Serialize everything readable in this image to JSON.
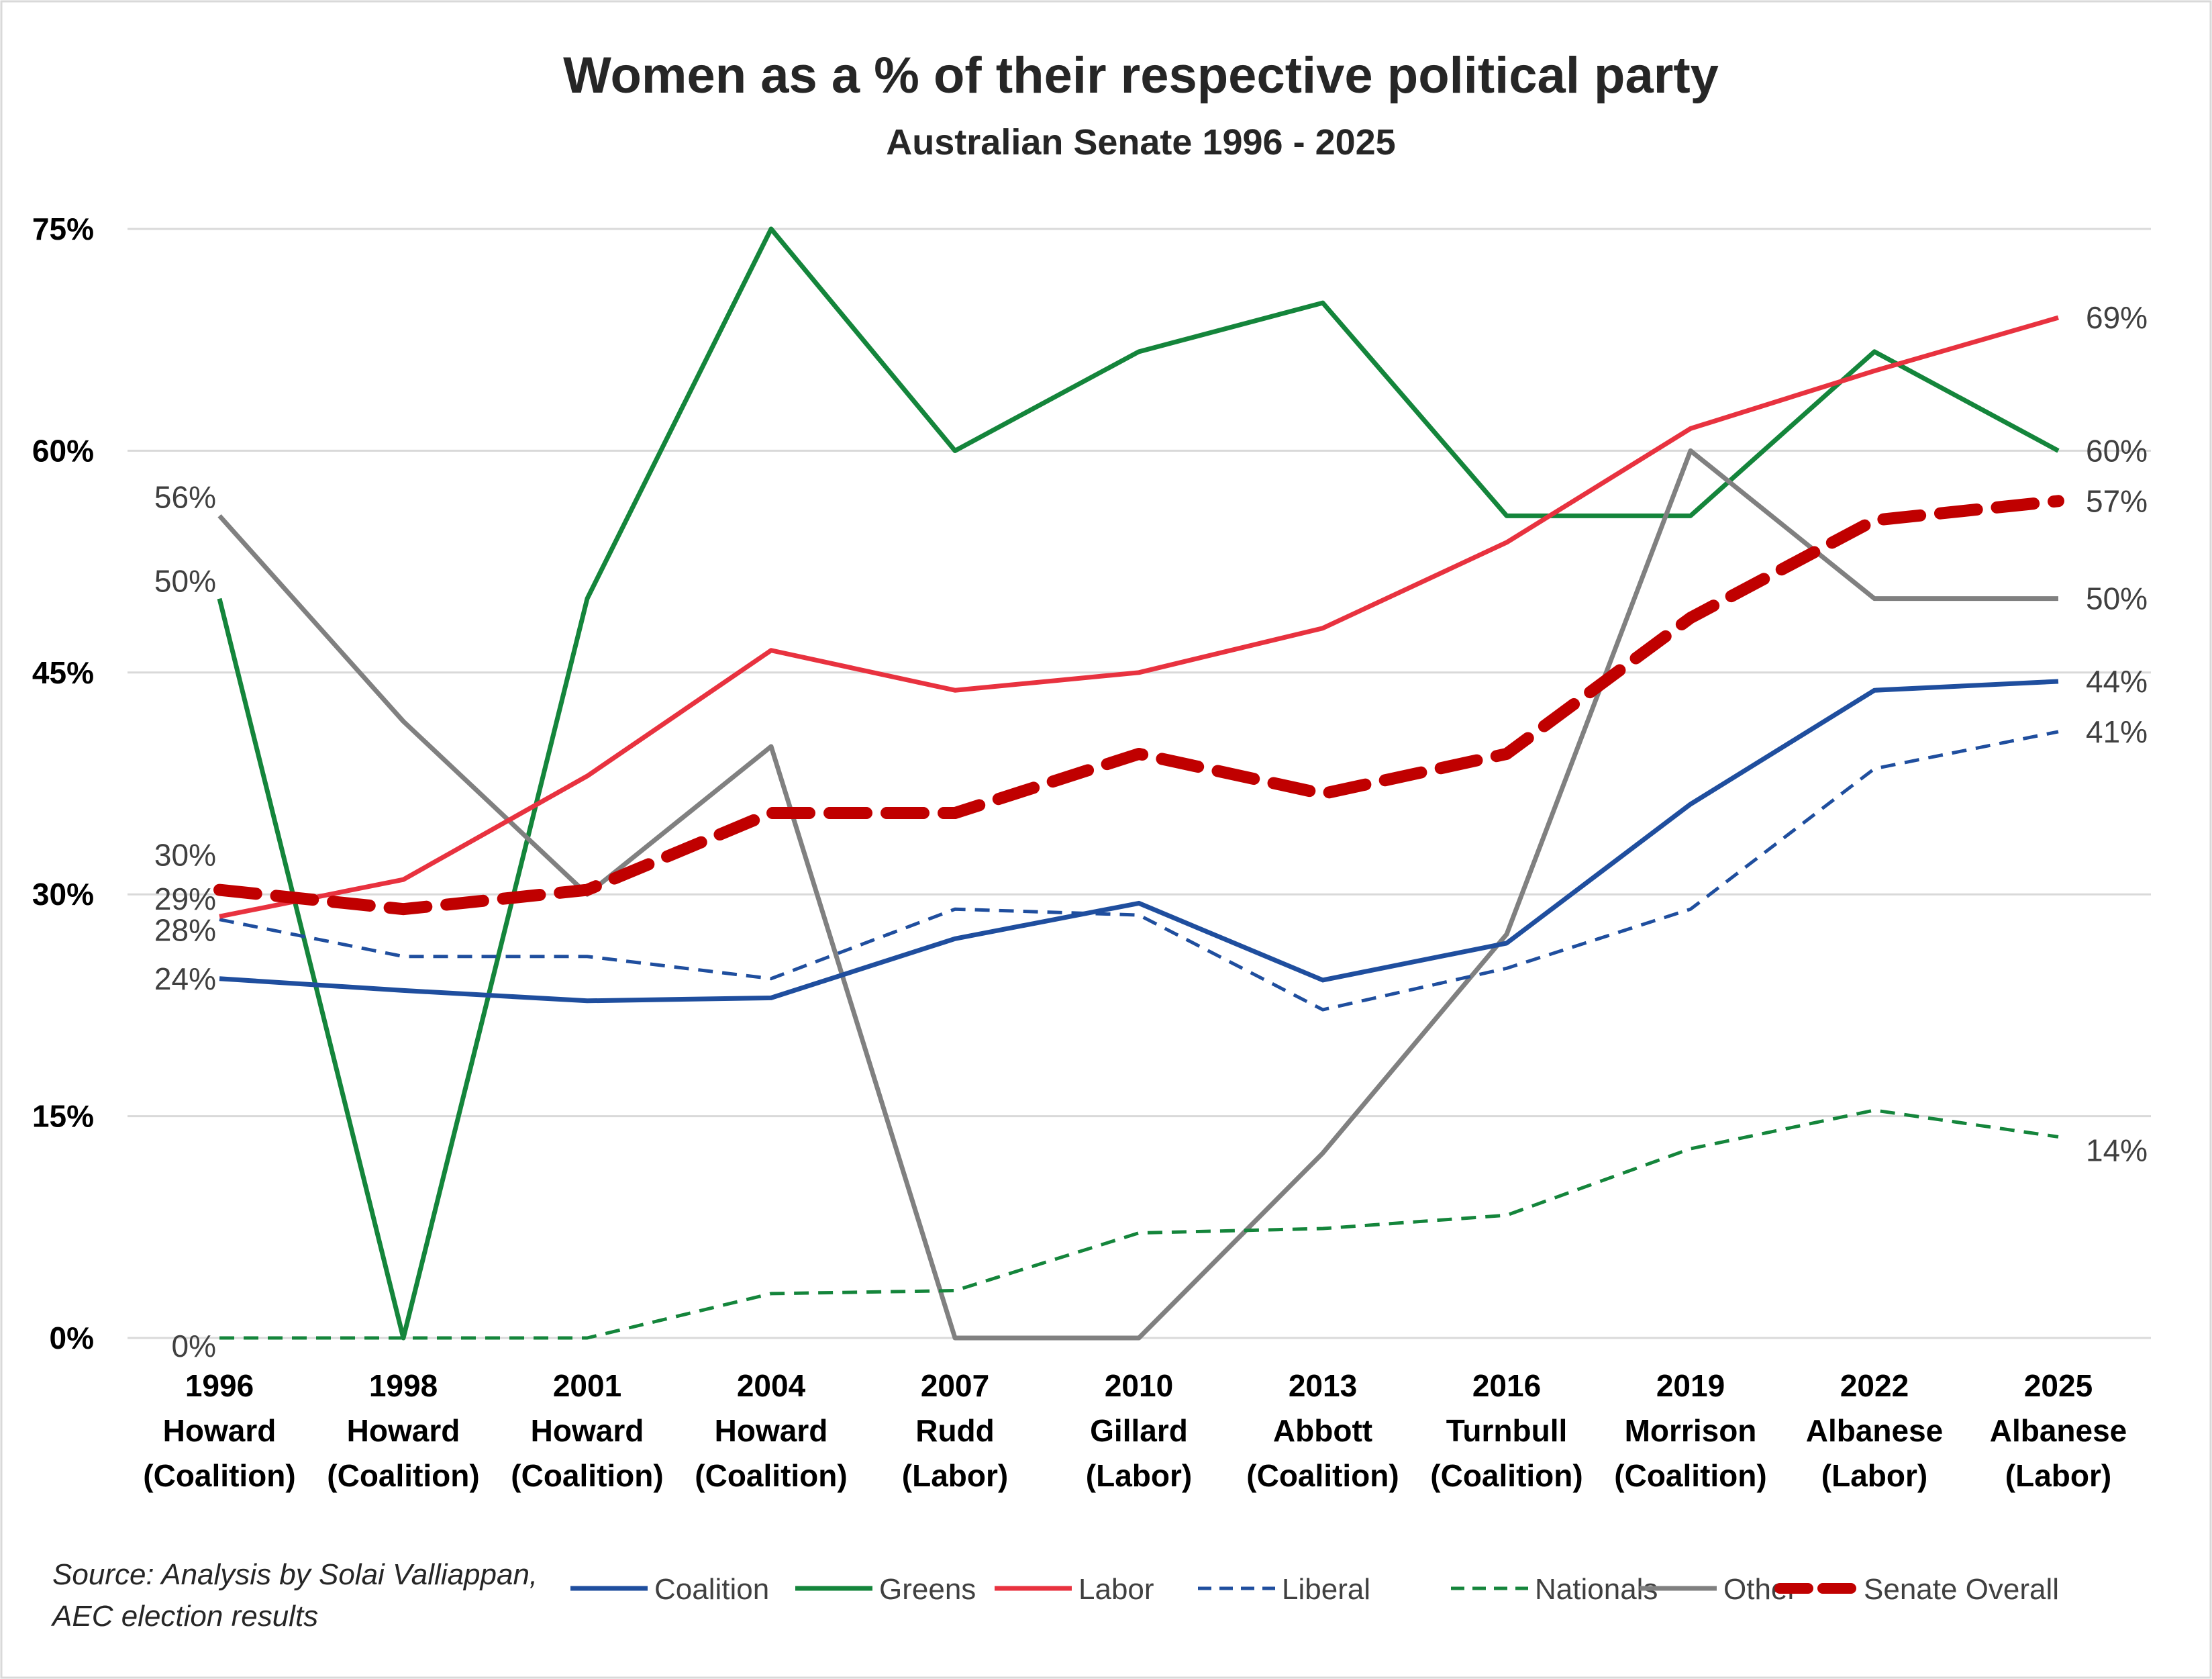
{
  "chart_data": {
    "type": "line",
    "title": "Women as a % of their respective political party",
    "subtitle": "Australian Senate 1996 - 2025",
    "ylim": [
      0,
      0.75
    ],
    "y_ticks": [
      {
        "value": 0,
        "label": "0%"
      },
      {
        "value": 0.15,
        "label": "15%"
      },
      {
        "value": 0.3,
        "label": "30%"
      },
      {
        "value": 0.45,
        "label": "45%"
      },
      {
        "value": 0.6,
        "label": "60%"
      },
      {
        "value": 0.75,
        "label": "75%"
      }
    ],
    "grid": true,
    "legend_position": "bottom",
    "categories": [
      {
        "year": "1996",
        "pm": "Howard",
        "party": "(Coalition)"
      },
      {
        "year": "1998",
        "pm": "Howard",
        "party": "(Coalition)"
      },
      {
        "year": "2001",
        "pm": "Howard",
        "party": "(Coalition)"
      },
      {
        "year": "2004",
        "pm": "Howard",
        "party": "(Coalition)"
      },
      {
        "year": "2007",
        "pm": "Rudd",
        "party": "(Labor)"
      },
      {
        "year": "2010",
        "pm": "Gillard",
        "party": "(Labor)"
      },
      {
        "year": "2013",
        "pm": "Abbott",
        "party": "(Coalition)"
      },
      {
        "year": "2016",
        "pm": "Turnbull",
        "party": "(Coalition)"
      },
      {
        "year": "2019",
        "pm": "Morrison",
        "party": "(Coalition)"
      },
      {
        "year": "2022",
        "pm": "Albanese",
        "party": "(Labor)"
      },
      {
        "year": "2025",
        "pm": "Albanese",
        "party": "(Labor)"
      }
    ],
    "series": [
      {
        "name": "Greens",
        "color": "#14853b",
        "style": "solid",
        "values": [
          0.5,
          0.0,
          0.5,
          0.75,
          0.6,
          0.667,
          0.7,
          0.556,
          0.556,
          0.667,
          0.6
        ],
        "first_label": "50%",
        "last_label": "60%"
      },
      {
        "name": "Other",
        "color": "#808080",
        "style": "solid",
        "values": [
          0.556,
          0.417,
          0.3,
          0.4,
          0.0,
          0.0,
          0.125,
          0.273,
          0.6,
          0.5,
          0.5
        ],
        "first_label": "56%",
        "last_label": "50%"
      },
      {
        "name": "Nationals",
        "color": "#14853b",
        "style": "dashed",
        "values": [
          0.0,
          0.0,
          0.0,
          0.03,
          0.032,
          0.071,
          0.074,
          0.083,
          0.128,
          0.154,
          0.136
        ],
        "first_label": "0%",
        "last_label": "14%"
      },
      {
        "name": "Liberal",
        "color": "#1f4e9e",
        "style": "dashed",
        "values": [
          0.283,
          0.258,
          0.258,
          0.243,
          0.29,
          0.286,
          0.222,
          0.25,
          0.29,
          0.385,
          0.41
        ],
        "first_label": "28%",
        "last_label": "41%"
      },
      {
        "name": "Coalition",
        "color": "#1f4e9e",
        "style": "solid",
        "values": [
          0.243,
          0.235,
          0.228,
          0.23,
          0.27,
          0.294,
          0.242,
          0.267,
          0.361,
          0.438,
          0.444
        ],
        "first_label": "24%",
        "last_label": "44%"
      },
      {
        "name": "Labor",
        "color": "#e8323f",
        "style": "solid",
        "values": [
          0.285,
          0.31,
          0.38,
          0.465,
          0.438,
          0.45,
          0.48,
          0.538,
          0.615,
          0.654,
          0.69
        ],
        "first_label": "29%",
        "last_label": "69%"
      },
      {
        "name": "Senate Overall",
        "color": "#c00000",
        "style": "thickdashed",
        "values": [
          0.303,
          0.29,
          0.303,
          0.355,
          0.355,
          0.395,
          0.368,
          0.395,
          0.487,
          0.553,
          0.566
        ],
        "first_label": "30%",
        "last_label": "57%"
      }
    ],
    "legend_order": [
      "Coalition",
      "Greens",
      "Labor",
      "Liberal",
      "Nationals",
      "Other",
      "Senate Overall"
    ]
  },
  "source": {
    "line1": "Source: Analysis by Solai Valliappan,",
    "line2": "AEC election results"
  }
}
